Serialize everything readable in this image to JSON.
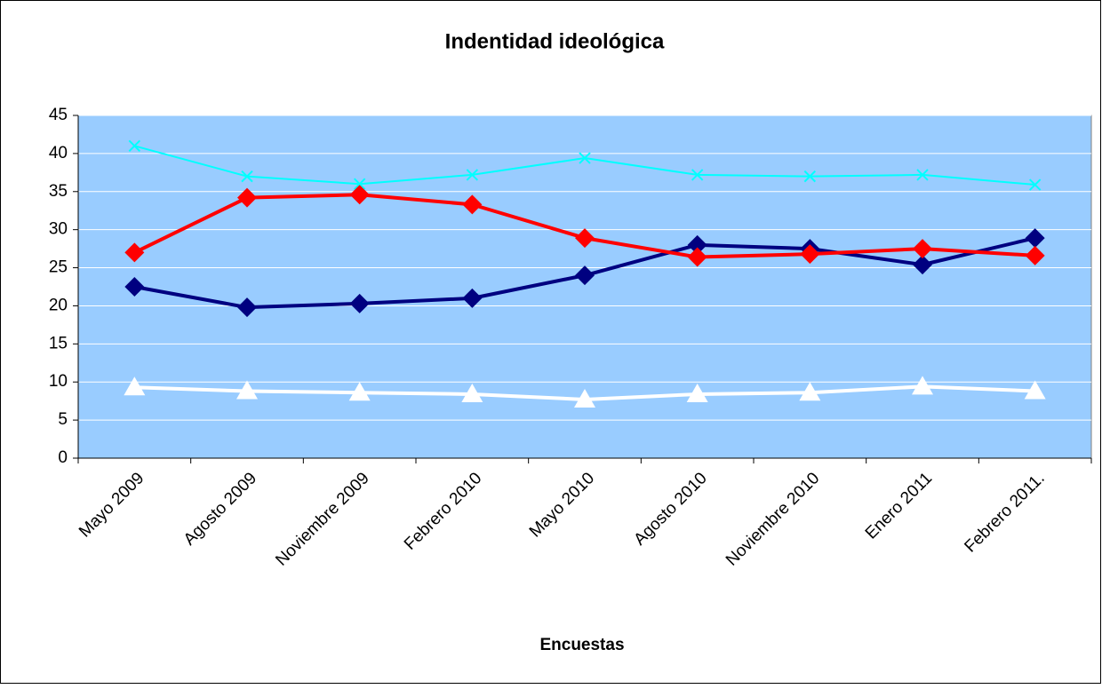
{
  "chart_data": {
    "type": "line",
    "title": "Indentidad ideológica",
    "x_label": "Encuestas",
    "categories": [
      "Mayo 2009",
      "Agosto 2009",
      "Noviembre 2009",
      "Febrero 2010",
      "Mayo 2010",
      "Agosto 2010",
      "Noviembre 2010",
      "Enero 2011",
      "Febrero 2011."
    ],
    "series": [
      {
        "color": "#00ffff",
        "marker": "x",
        "values": [
          41,
          37,
          36,
          37.2,
          39.4,
          37.2,
          37,
          37.2,
          35.9
        ]
      },
      {
        "color": "#000080",
        "marker": "diamond",
        "values": [
          22.5,
          19.8,
          20.3,
          21,
          24,
          28,
          27.5,
          25.4,
          28.9
        ]
      },
      {
        "color": "#ff0000",
        "marker": "diamond",
        "values": [
          27,
          34.2,
          34.6,
          33.3,
          28.9,
          26.4,
          26.8,
          27.5,
          26.6
        ]
      },
      {
        "color": "#ffffff",
        "marker": "triangle",
        "values": [
          9.3,
          8.8,
          8.6,
          8.4,
          7.7,
          8.4,
          8.6,
          9.4,
          8.8
        ]
      }
    ],
    "ylim": [
      0,
      45
    ],
    "yticks": [
      0,
      5,
      10,
      15,
      20,
      25,
      30,
      35,
      40,
      45
    ],
    "grid": true,
    "plot_background": "#99ccff"
  }
}
